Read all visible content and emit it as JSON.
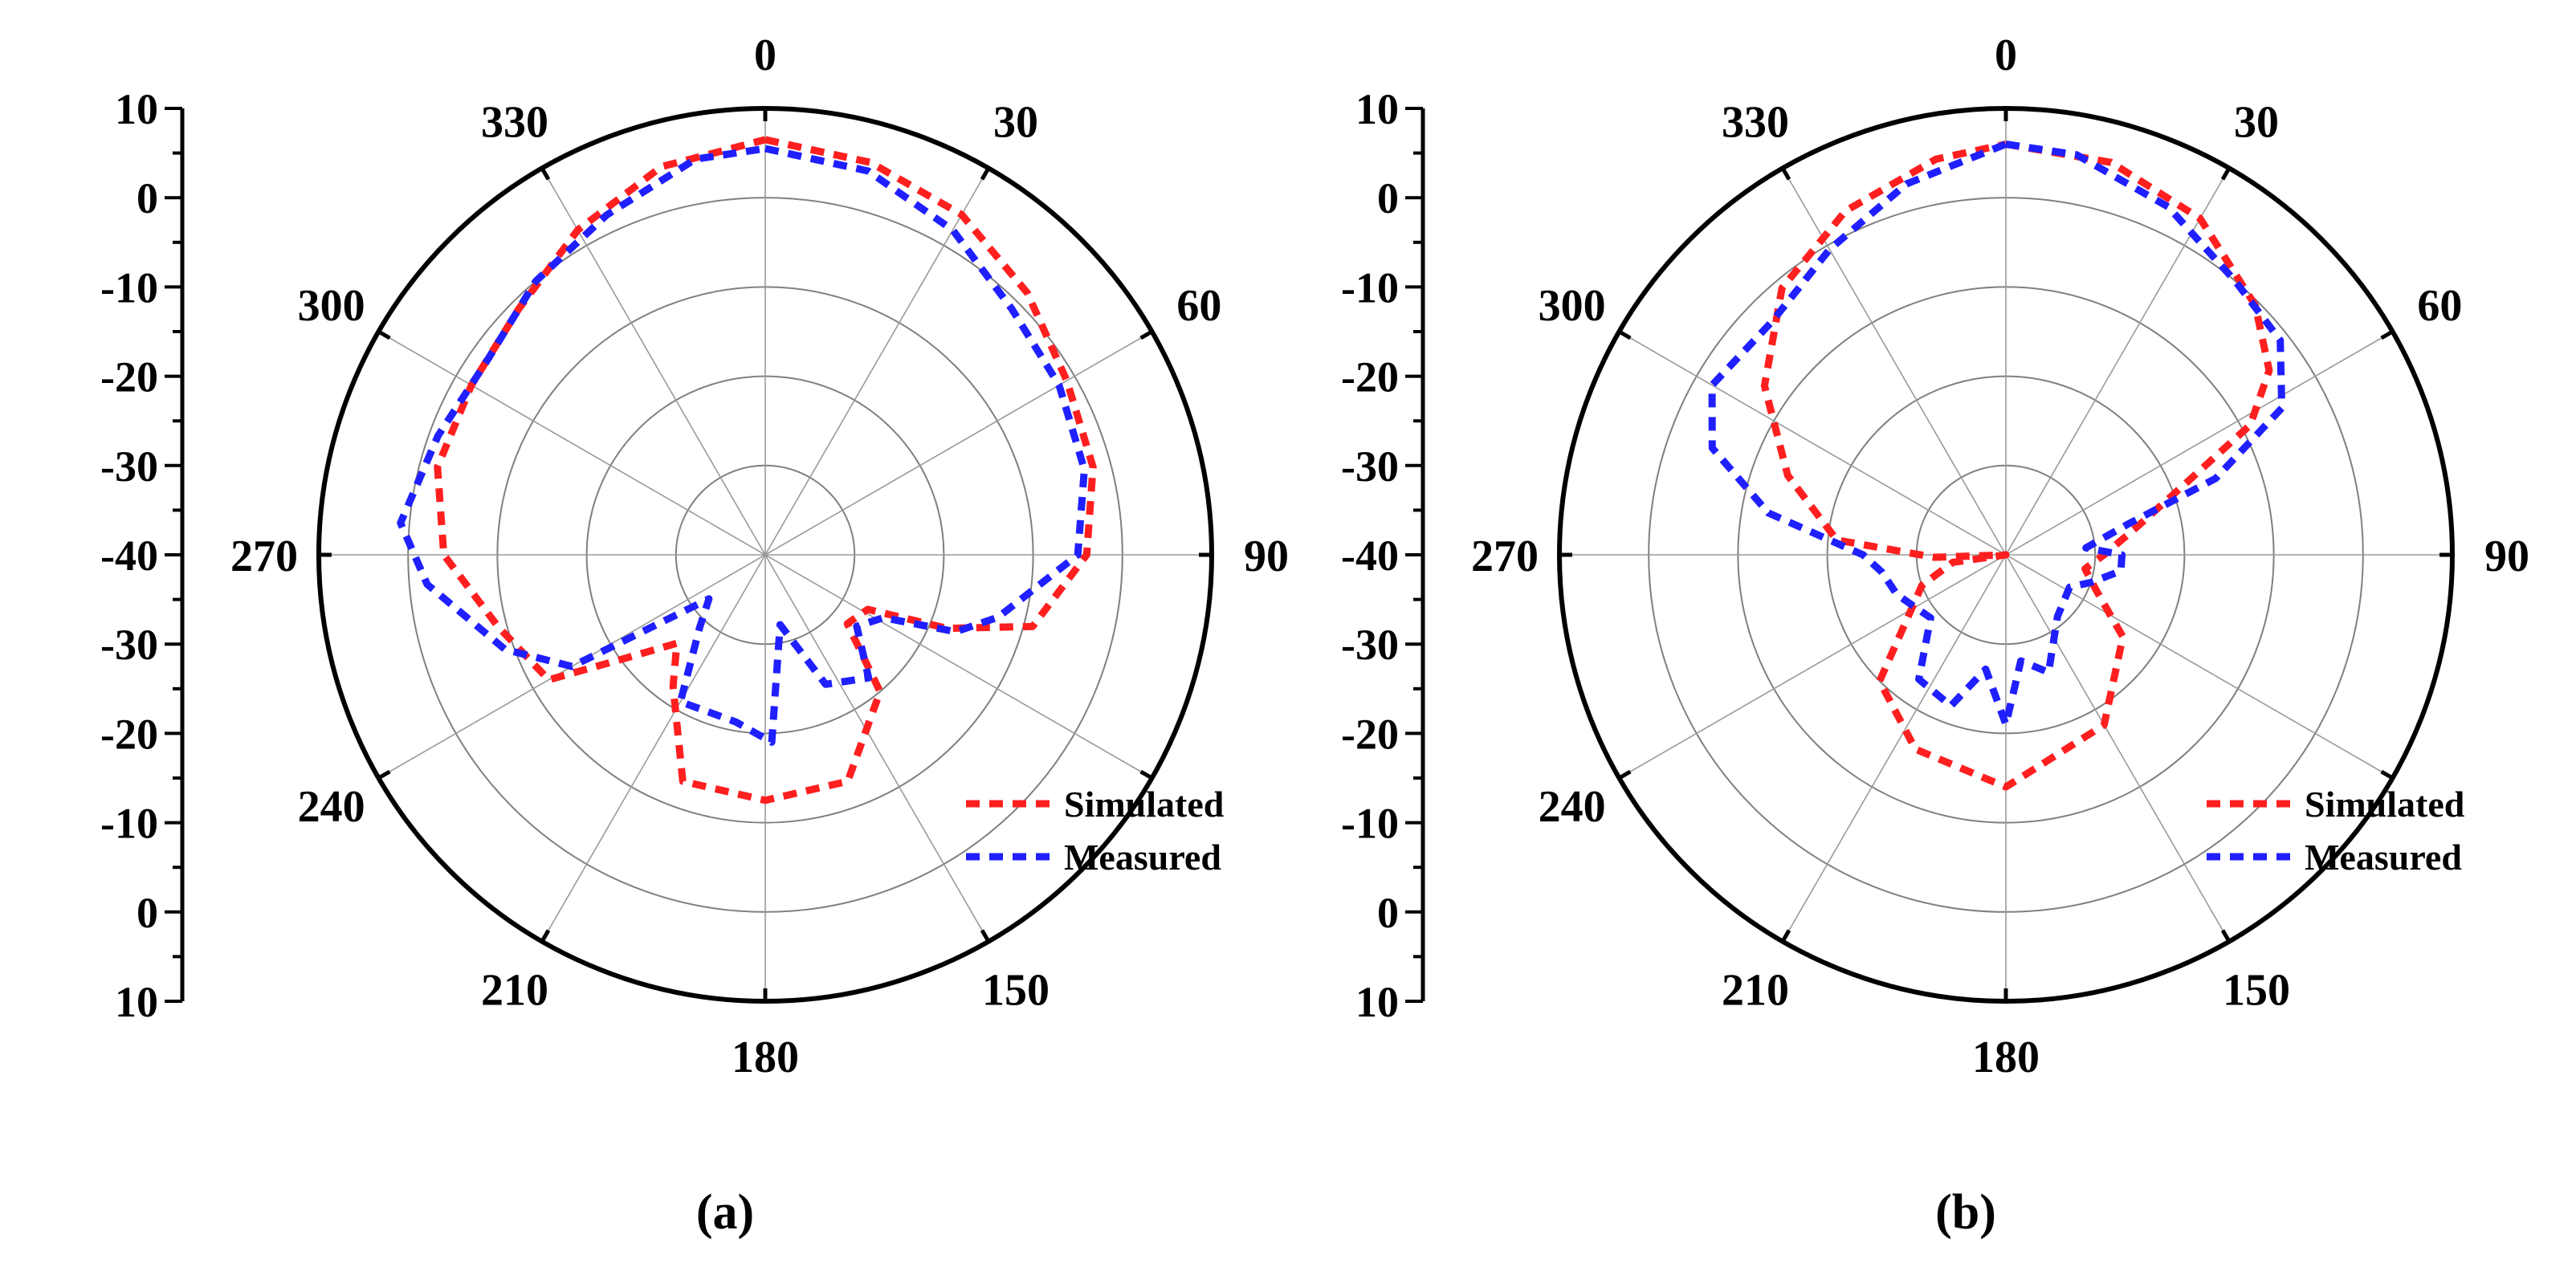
{
  "chart_data": [
    {
      "type": "polar-line",
      "panel_label": "(a)",
      "radial_axis": {
        "range_db": [
          -40,
          10
        ],
        "tick_labels": [
          "10",
          "0",
          "-10",
          "-20",
          "-30",
          "-40",
          "-30",
          "-20",
          "-10",
          "0",
          "10"
        ],
        "grid_circles_db": [
          -30,
          -20,
          -10,
          0,
          10
        ]
      },
      "angle_labels": [
        "0",
        "30",
        "60",
        "90",
        "150",
        "180",
        "210",
        "240",
        "270",
        "300",
        "330"
      ],
      "legend": {
        "placement": "bottom-right",
        "entries": [
          "Simulated",
          "Measured"
        ]
      },
      "series": [
        {
          "name": "Simulated",
          "color": "#ff1f1f",
          "points": [
            [
              0,
              6.5
            ],
            [
              15,
              5.5
            ],
            [
              30,
              4
            ],
            [
              45,
              1.5
            ],
            [
              60,
              -1
            ],
            [
              75,
              -2
            ],
            [
              90,
              -4
            ],
            [
              105,
              -9
            ],
            [
              112,
              -18
            ],
            [
              118,
              -27
            ],
            [
              130,
              -28
            ],
            [
              140,
              -20
            ],
            [
              160,
              -13
            ],
            [
              180,
              -12.5
            ],
            [
              200,
              -13
            ],
            [
              215,
              -22
            ],
            [
              225,
              -26
            ],
            [
              233,
              -21
            ],
            [
              240,
              -12
            ],
            [
              255,
              -9
            ],
            [
              270,
              -4
            ],
            [
              285,
              -2
            ],
            [
              300,
              -2
            ],
            [
              315,
              -1
            ],
            [
              330,
              2
            ],
            [
              345,
              5
            ],
            [
              360,
              6.5
            ]
          ]
        },
        {
          "name": "Measured",
          "color": "#1f1fff",
          "points": [
            [
              0,
              5.5
            ],
            [
              15,
              4.5
            ],
            [
              30,
              2
            ],
            [
              45,
              -1
            ],
            [
              60,
              -2
            ],
            [
              75,
              -3
            ],
            [
              90,
              -5
            ],
            [
              105,
              -13
            ],
            [
              112,
              -17
            ],
            [
              118,
              -25
            ],
            [
              128,
              -27
            ],
            [
              140,
              -22
            ],
            [
              155,
              -24
            ],
            [
              168,
              -32
            ],
            [
              178,
              -19
            ],
            [
              190,
              -21
            ],
            [
              210,
              -21
            ],
            [
              222,
              -29
            ],
            [
              232,
              -32
            ],
            [
              240,
              -15
            ],
            [
              250,
              -9
            ],
            [
              265,
              -2
            ],
            [
              275,
              1
            ],
            [
              290,
              -1
            ],
            [
              305,
              -2
            ],
            [
              320,
              0
            ],
            [
              335,
              2
            ],
            [
              350,
              5
            ],
            [
              360,
              5.5
            ]
          ]
        }
      ]
    },
    {
      "type": "polar-line",
      "panel_label": "(b)",
      "radial_axis": {
        "range_db": [
          -40,
          10
        ],
        "tick_labels": [
          "10",
          "0",
          "-10",
          "-20",
          "-30",
          "-40",
          "-30",
          "-20",
          "-10",
          "0",
          "10"
        ],
        "grid_circles_db": [
          -30,
          -20,
          -10,
          0,
          10
        ]
      },
      "angle_labels": [
        "0",
        "30",
        "60",
        "90",
        "150",
        "180",
        "210",
        "240",
        "270",
        "300",
        "330"
      ],
      "legend": {
        "placement": "bottom-right",
        "entries": [
          "Simulated",
          "Measured"
        ]
      },
      "series": [
        {
          "name": "Simulated",
          "color": "#ff1f1f",
          "points": [
            [
              0,
              6
            ],
            [
              15,
              5.5
            ],
            [
              30,
              3.5
            ],
            [
              45,
              -0.5
            ],
            [
              55,
              -4
            ],
            [
              62,
              -9
            ],
            [
              68,
              -18
            ],
            [
              78,
              -25
            ],
            [
              90,
              -29
            ],
            [
              100,
              -31
            ],
            [
              112,
              -29
            ],
            [
              125,
              -24
            ],
            [
              150,
              -18
            ],
            [
              180,
              -14
            ],
            [
              205,
              -16
            ],
            [
              225,
              -20
            ],
            [
              250,
              -30
            ],
            [
              262,
              -34
            ],
            [
              266,
              -40
            ],
            [
              268,
              -32
            ],
            [
              275,
              -21
            ],
            [
              290,
              -14
            ],
            [
              305,
              -7
            ],
            [
              320,
              -1
            ],
            [
              335,
              2.5
            ],
            [
              350,
              5
            ],
            [
              360,
              6
            ]
          ]
        },
        {
          "name": "Measured",
          "color": "#1f1fff",
          "points": [
            [
              0,
              6
            ],
            [
              10,
              5.5
            ],
            [
              25,
              3
            ],
            [
              40,
              0
            ],
            [
              52,
              -1
            ],
            [
              62,
              -5
            ],
            [
              70,
              -15
            ],
            [
              76,
              -26
            ],
            [
              85,
              -31
            ],
            [
              90,
              -27
            ],
            [
              98,
              -27
            ],
            [
              108,
              -30
            ],
            [
              117,
              -32
            ],
            [
              140,
              -31
            ],
            [
              160,
              -26
            ],
            [
              172,
              -28
            ],
            [
              180,
              -21
            ],
            [
              190,
              -27
            ],
            [
              200,
              -22
            ],
            [
              215,
              -23
            ],
            [
              230,
              -29
            ],
            [
              250,
              -27
            ],
            [
              262,
              -26
            ],
            [
              270,
              -24
            ],
            [
              280,
              -13
            ],
            [
              290,
              -5
            ],
            [
              300,
              -2
            ],
            [
              315,
              -3
            ],
            [
              330,
              -0.5
            ],
            [
              345,
              3
            ],
            [
              360,
              6
            ]
          ]
        }
      ]
    }
  ]
}
